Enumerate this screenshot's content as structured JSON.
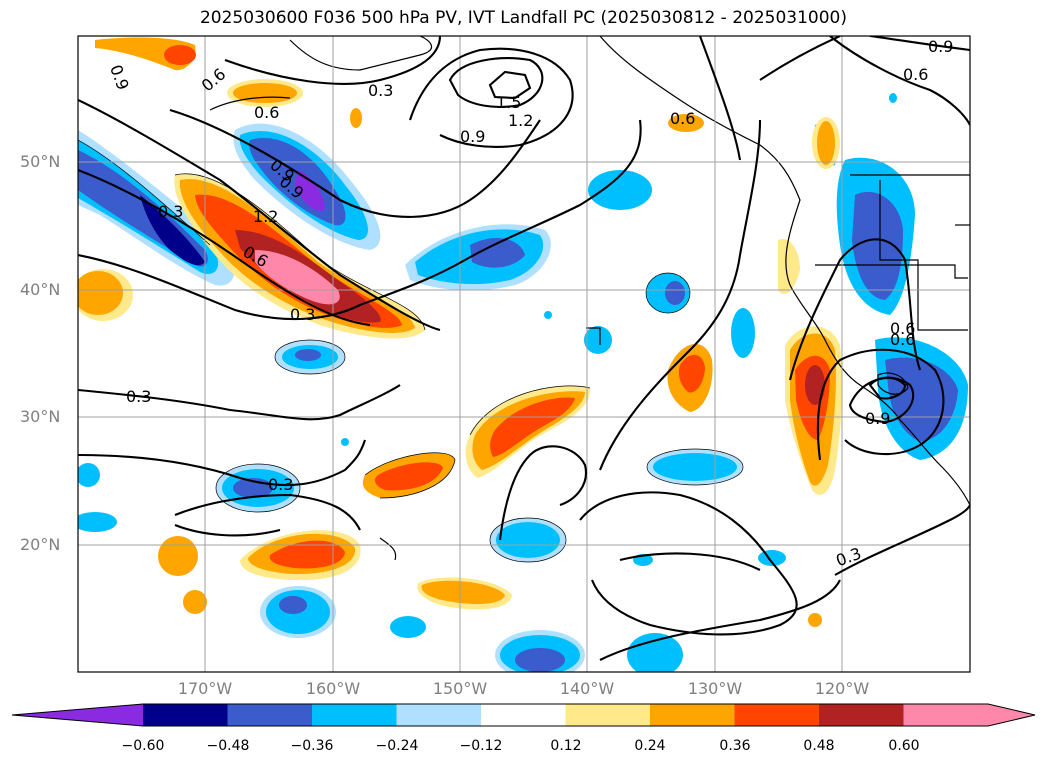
{
  "title": "2025030600 F036 500 hPa PV, IVT Landfall PC (2025030812 - 2025031000)",
  "lat_labels": [
    "50°N",
    "40°N",
    "30°N",
    "20°N"
  ],
  "lon_labels": [
    "170°W",
    "160°W",
    "150°W",
    "140°W",
    "130°W",
    "120°W"
  ],
  "contour_labels": [
    "0.9",
    "0.6",
    "0.3",
    "1.5",
    "1.2",
    "0.9",
    "0.6",
    "0.9",
    "0.6",
    "0.6",
    "0.9",
    "0.3",
    "1.2",
    "0.6",
    "0.3",
    "0.3",
    "0.3",
    "0.6",
    "0.9",
    "0.3",
    "0.9",
    "0.6"
  ],
  "colorbar": {
    "ticks": [
      "−0.60",
      "−0.48",
      "−0.36",
      "−0.24",
      "−0.12",
      "0.12",
      "0.24",
      "0.36",
      "0.48",
      "0.60"
    ],
    "colors": [
      "#8a2be2",
      "#00008b",
      "#3a5ccc",
      "#00bfff",
      "#b0e0ff",
      "#ffffff",
      "#ffe98a",
      "#ffa500",
      "#ff4500",
      "#b22222",
      "#ff88aa",
      "#ff88aa"
    ]
  }
}
